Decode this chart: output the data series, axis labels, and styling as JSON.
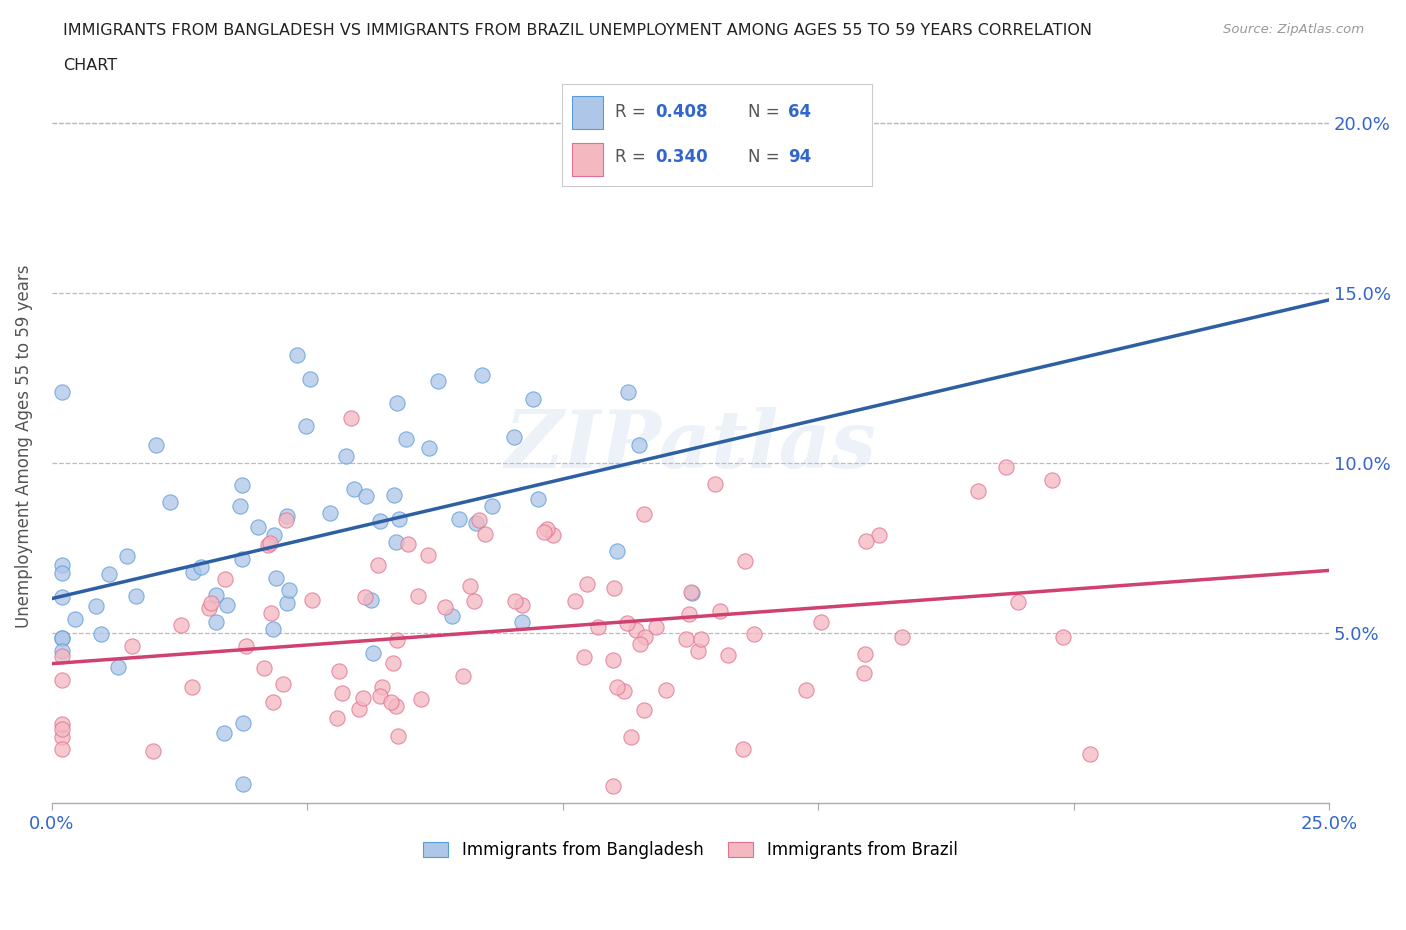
{
  "title_line1": "IMMIGRANTS FROM BANGLADESH VS IMMIGRANTS FROM BRAZIL UNEMPLOYMENT AMONG AGES 55 TO 59 YEARS CORRELATION",
  "title_line2": "CHART",
  "source": "Source: ZipAtlas.com",
  "ylabel": "Unemployment Among Ages 55 to 59 years",
  "xlim": [
    0.0,
    0.25
  ],
  "ylim": [
    0.0,
    0.21
  ],
  "watermark": "ZIPatlas",
  "color_bangladesh": "#aec6e8",
  "color_brazil": "#f4b8c1",
  "color_edge_bangladesh": "#5b9bd5",
  "color_edge_brazil": "#e07090",
  "color_trend_bangladesh": "#2e5fa3",
  "color_trend_brazil": "#d04070"
}
